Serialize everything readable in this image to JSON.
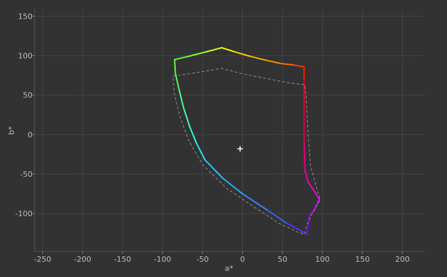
{
  "chart_data": {
    "type": "line",
    "title": "",
    "xlabel": "a*",
    "ylabel": "b*",
    "xlim": [
      -260,
      228
    ],
    "ylim": [
      -148,
      160
    ],
    "xticks": [
      -250,
      -200,
      -150,
      -100,
      -50,
      0,
      50,
      100,
      150,
      200
    ],
    "yticks": [
      -100,
      -50,
      0,
      50,
      100,
      150
    ],
    "xtick_labels": [
      "-250",
      "-200",
      "-150",
      "-100",
      "-50",
      "0",
      "50",
      "100",
      "150",
      "200"
    ],
    "ytick_labels": [
      "-100",
      "-50",
      "0",
      "50",
      "100",
      "150"
    ],
    "grid": true,
    "background": "#323232",
    "grid_color": "#444444",
    "series": [
      {
        "style": "solid-hue-gradient",
        "points": [
          [
            -85,
            95
          ],
          [
            -68,
            99
          ],
          [
            -45,
            105
          ],
          [
            -26,
            110
          ],
          [
            -10,
            105
          ],
          [
            10,
            99
          ],
          [
            30,
            94
          ],
          [
            48,
            90
          ],
          [
            65,
            88
          ],
          [
            77,
            86
          ],
          [
            77,
            70
          ],
          [
            77,
            30
          ],
          [
            77,
            -10
          ],
          [
            78,
            -45
          ],
          [
            82,
            -60
          ],
          [
            90,
            -72
          ],
          [
            96,
            -82
          ],
          [
            90,
            -95
          ],
          [
            84,
            -103
          ],
          [
            82,
            -113
          ],
          [
            81,
            -126
          ],
          [
            75,
            -123
          ],
          [
            55,
            -112
          ],
          [
            30,
            -95
          ],
          [
            0,
            -75
          ],
          [
            -25,
            -55
          ],
          [
            -47,
            -32
          ],
          [
            -58,
            -10
          ],
          [
            -66,
            10
          ],
          [
            -74,
            35
          ],
          [
            -80,
            60
          ],
          [
            -84,
            78
          ],
          [
            -85,
            95
          ]
        ],
        "colors": [
          "#60ff30",
          "#8cff28",
          "#c8ff20",
          "#ffff00",
          "#ffd600",
          "#ffb000",
          "#ff9000",
          "#ff6a00",
          "#ff3c00",
          "#ff1a00",
          "#f5001c",
          "#e0003c",
          "#e00080",
          "#e800b0",
          "#ee00d8",
          "#e800f0",
          "#d000ff",
          "#b000ff",
          "#9000ff",
          "#7400ff",
          "#5a22ff",
          "#4a3aff",
          "#3a60ff",
          "#3088ff",
          "#28aaff",
          "#22c8ff",
          "#20e6ff",
          "#30ffe0",
          "#40ffb0",
          "#50ff80",
          "#58ff58",
          "#5cff40",
          "#60ff30"
        ]
      },
      {
        "style": "dashed",
        "color": "#8a8a8a",
        "points": [
          [
            -87,
            74
          ],
          [
            -55,
            79
          ],
          [
            -26,
            84
          ],
          [
            0,
            77
          ],
          [
            30,
            71
          ],
          [
            55,
            66
          ],
          [
            78,
            63
          ],
          [
            80,
            40
          ],
          [
            82,
            0
          ],
          [
            85,
            -40
          ],
          [
            92,
            -65
          ],
          [
            97,
            -83
          ],
          [
            87,
            -100
          ],
          [
            80,
            -116
          ],
          [
            78,
            -126
          ],
          [
            70,
            -124
          ],
          [
            45,
            -112
          ],
          [
            15,
            -92
          ],
          [
            -20,
            -68
          ],
          [
            -50,
            -38
          ],
          [
            -67,
            -8
          ],
          [
            -78,
            22
          ],
          [
            -85,
            50
          ],
          [
            -87,
            74
          ]
        ]
      }
    ],
    "white_point": [
      -3,
      -18
    ],
    "white_point_color": "#ffffff"
  }
}
